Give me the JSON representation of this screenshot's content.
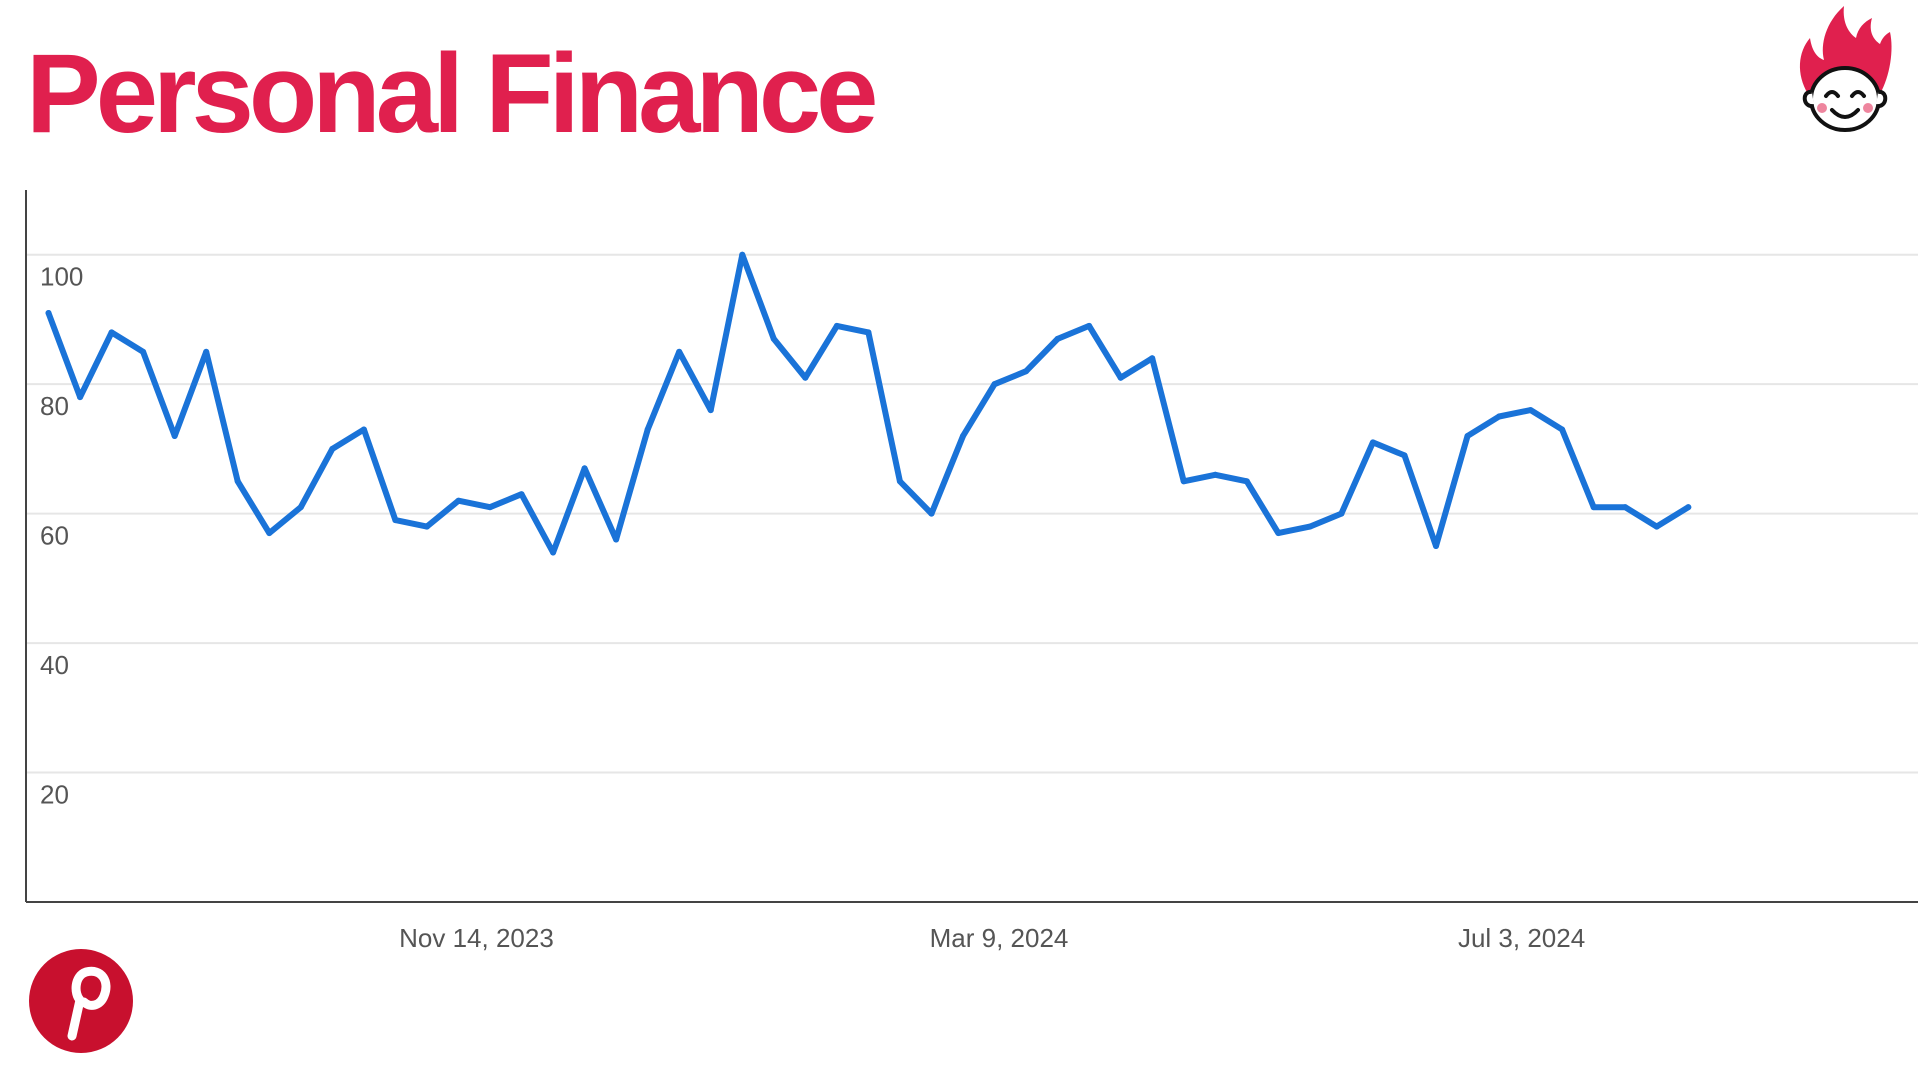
{
  "colors": {
    "title": "#e0204e",
    "line": "#1a73d8",
    "axis": "#444444",
    "grid": "#e6e6e6",
    "tick_text": "#555555",
    "brand_red": "#e0204e",
    "pinterest_red": "#c8102e"
  },
  "icons": {
    "logo": "flame-hair-smiling-face-logo",
    "social": "pinterest-logo-icon"
  },
  "chart_data": {
    "type": "line",
    "title": "Personal Finance",
    "xlabel": "",
    "ylabel": "",
    "ylim": [
      0,
      110
    ],
    "yticks": [
      20,
      40,
      60,
      80,
      100
    ],
    "grid": true,
    "xlim": [
      "2023-08-06",
      "2024-09-29"
    ],
    "xticks": [
      {
        "date": "2023-11-14",
        "label": "Nov 14, 2023"
      },
      {
        "date": "2024-03-09",
        "label": "Mar 9, 2024"
      },
      {
        "date": "2024-07-03",
        "label": "Jul 3, 2024"
      }
    ],
    "series": [
      {
        "name": "",
        "x": [
          "2023-08-11",
          "2023-08-18",
          "2023-08-25",
          "2023-09-01",
          "2023-09-08",
          "2023-09-15",
          "2023-09-22",
          "2023-09-29",
          "2023-10-06",
          "2023-10-13",
          "2023-10-20",
          "2023-10-27",
          "2023-11-03",
          "2023-11-10",
          "2023-11-17",
          "2023-11-24",
          "2023-12-01",
          "2023-12-08",
          "2023-12-15",
          "2023-12-22",
          "2023-12-29",
          "2024-01-05",
          "2024-01-12",
          "2024-01-19",
          "2024-01-26",
          "2024-02-02",
          "2024-02-09",
          "2024-02-16",
          "2024-02-23",
          "2024-03-01",
          "2024-03-08",
          "2024-03-15",
          "2024-03-22",
          "2024-03-29",
          "2024-04-05",
          "2024-04-12",
          "2024-04-19",
          "2024-04-26",
          "2024-05-03",
          "2024-05-10",
          "2024-05-17",
          "2024-05-24",
          "2024-05-31",
          "2024-06-07",
          "2024-06-14",
          "2024-06-21",
          "2024-06-28",
          "2024-07-05",
          "2024-07-12",
          "2024-07-19",
          "2024-07-26",
          "2024-08-02",
          "2024-08-09"
        ],
        "values": [
          91,
          78,
          88,
          85,
          72,
          85,
          65,
          57,
          61,
          70,
          73,
          59,
          58,
          62,
          61,
          63,
          54,
          67,
          56,
          73,
          85,
          76,
          100,
          87,
          81,
          89,
          88,
          65,
          60,
          72,
          80,
          82,
          87,
          89,
          81,
          84,
          65,
          66,
          65,
          57,
          58,
          60,
          71,
          69,
          55,
          72,
          75,
          76,
          73,
          61,
          61,
          58,
          61
        ]
      }
    ]
  }
}
